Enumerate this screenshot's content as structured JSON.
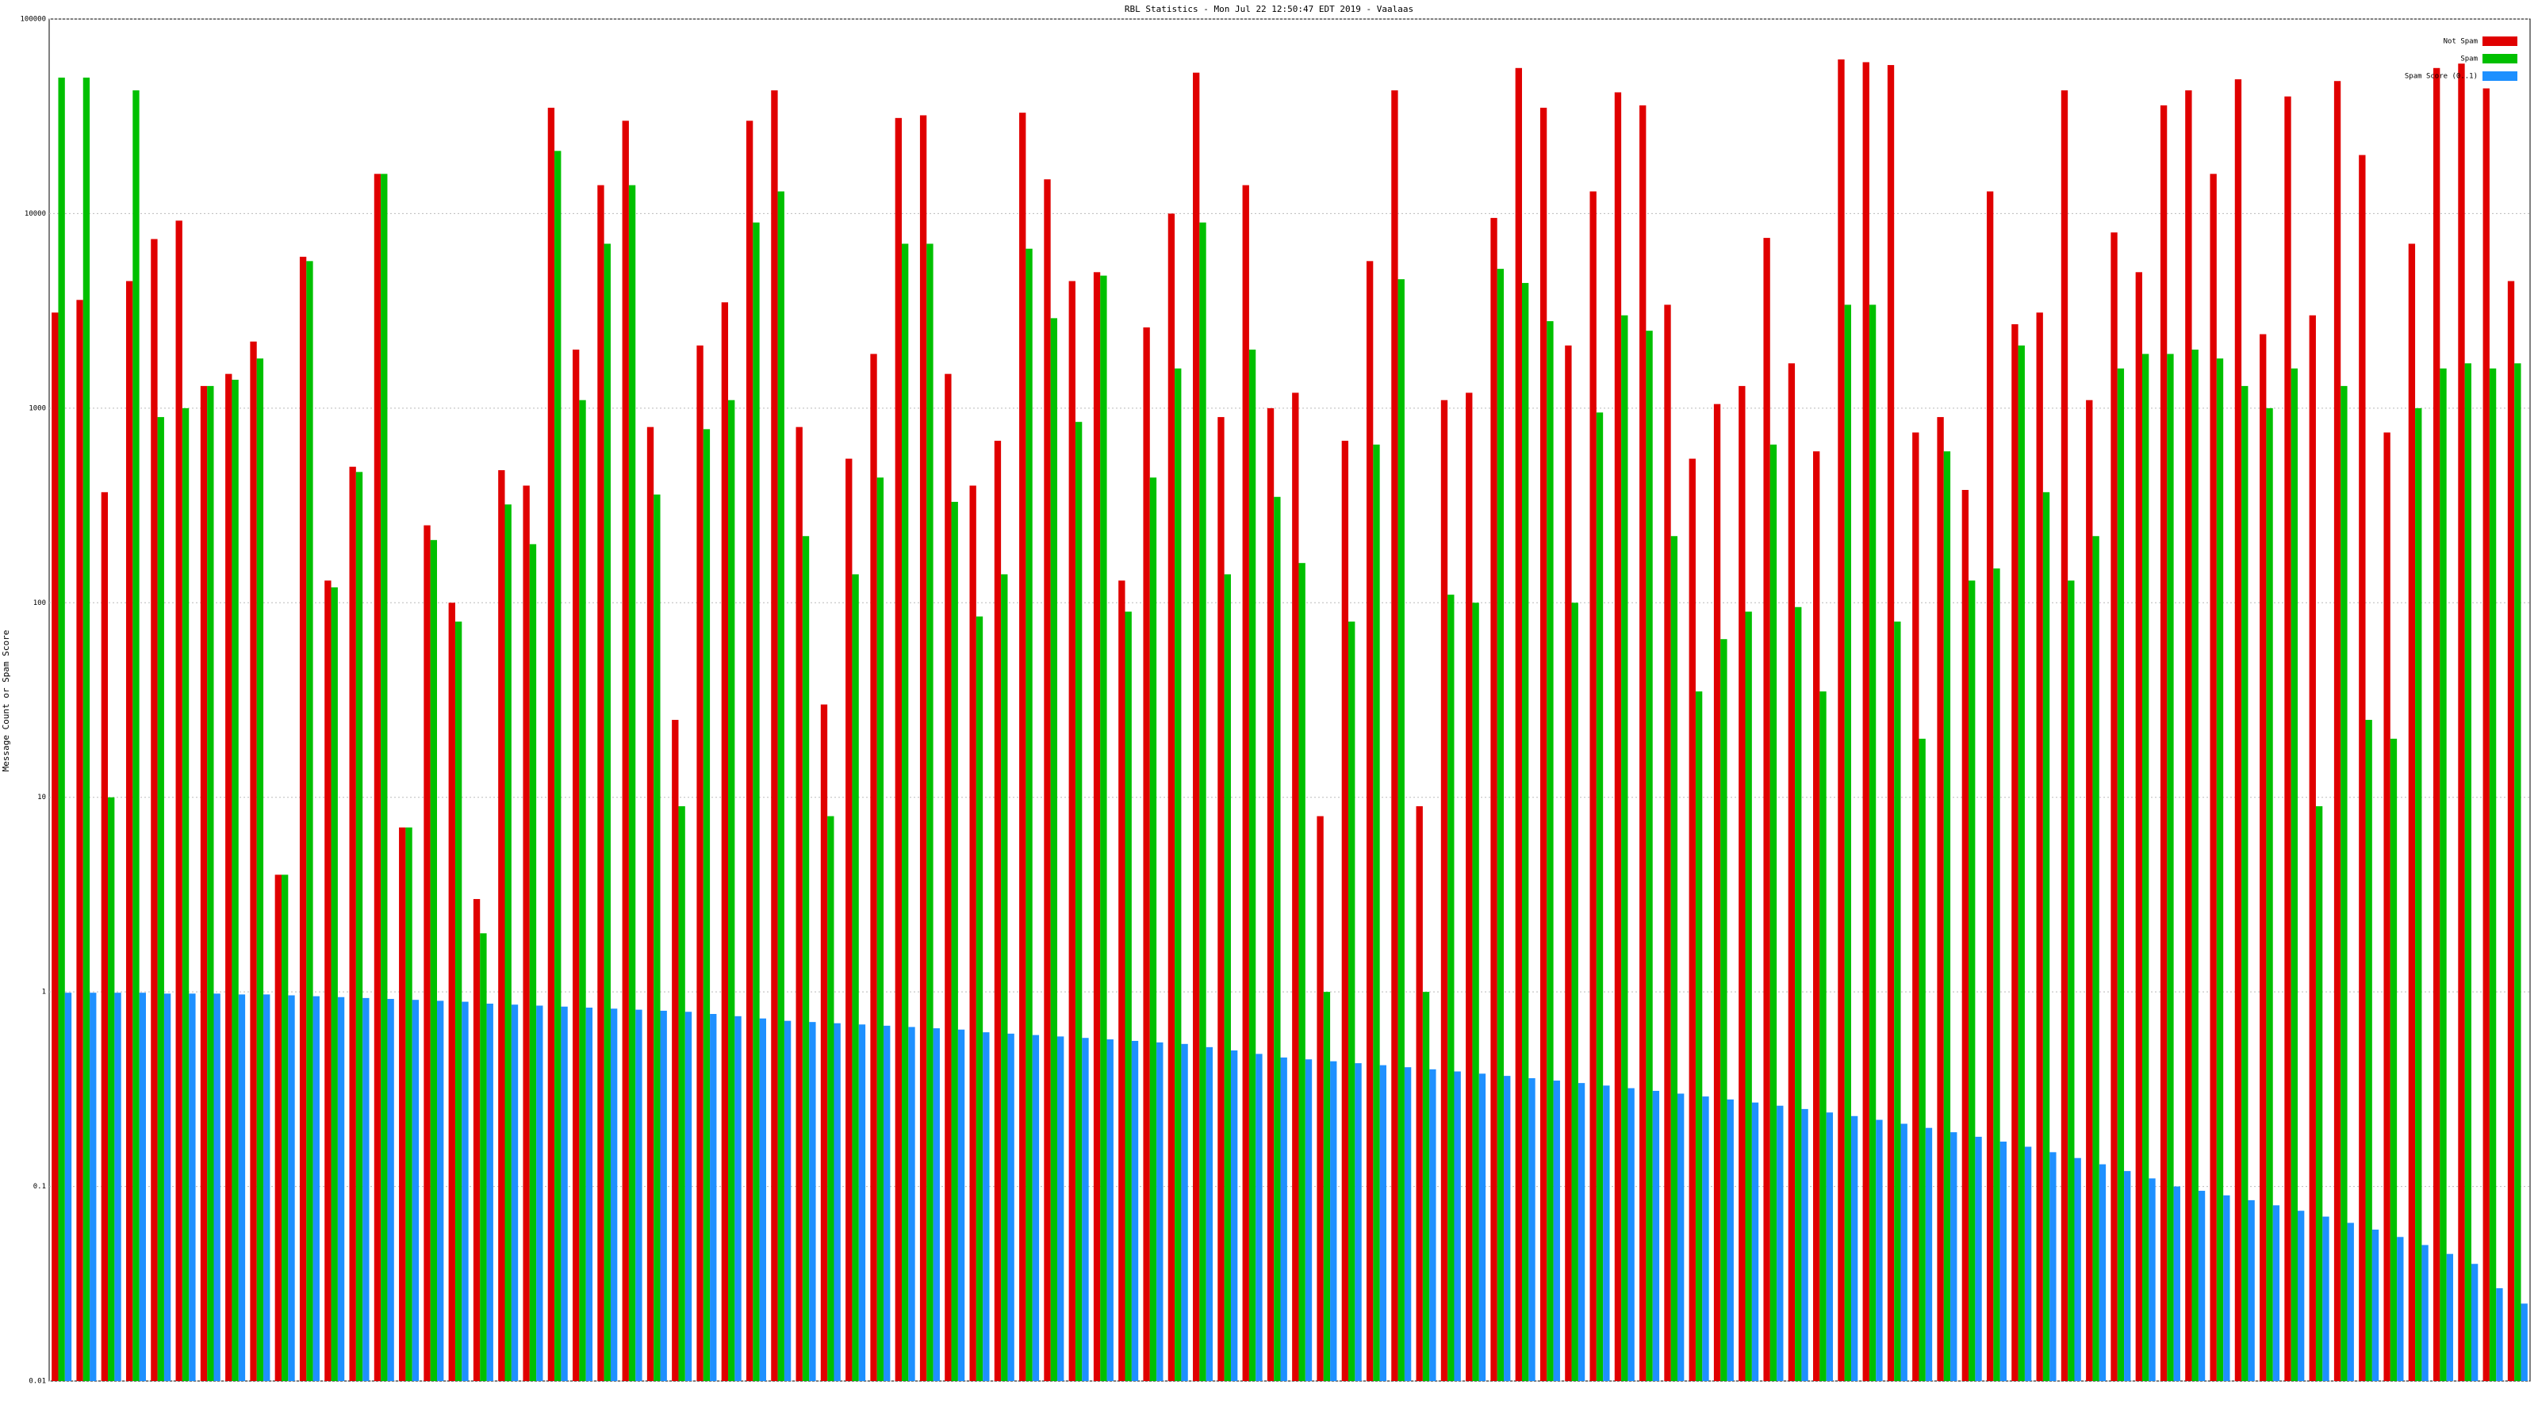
{
  "chart_data": {
    "type": "bar",
    "title": "RBL Statistics - Mon Jul 22 12:50:47 EDT 2019 - Vaalaas",
    "y_label": "Message Count or Spam Score",
    "log_scale": true,
    "grid": true,
    "legend": "top-right",
    "categories": [
      null,
      null,
      null,
      null,
      null,
      null,
      null,
      null,
      null,
      null,
      null,
      null,
      null,
      null,
      null,
      null,
      null,
      null,
      null,
      null,
      null,
      null,
      null,
      null,
      null,
      null,
      null,
      null,
      null,
      null,
      null,
      null,
      null,
      null,
      null,
      null,
      null,
      null,
      null,
      null,
      null,
      null,
      null,
      null,
      null,
      null,
      null,
      null,
      null,
      null,
      null,
      null,
      null,
      null,
      null,
      null,
      null,
      null,
      null,
      null,
      null,
      null,
      null,
      null,
      null,
      null,
      null,
      null,
      null,
      null,
      null,
      null,
      null,
      null,
      null,
      null,
      null,
      null,
      null,
      null,
      null,
      null,
      null,
      null,
      null,
      null,
      null,
      null,
      null,
      null,
      null,
      null,
      null,
      null,
      null,
      null,
      null,
      null,
      null,
      null
    ],
    "series": [
      {
        "name": "Not Spam",
        "color": "#e00000",
        "values": [
          3100,
          3600,
          370,
          4500,
          7400,
          9200,
          1300,
          1500,
          2200,
          4,
          6000,
          130,
          500,
          16000,
          7,
          250,
          100,
          3,
          480,
          400,
          35000,
          2000,
          14000,
          30000,
          800,
          25,
          2100,
          3500,
          30000,
          43000,
          800,
          30,
          550,
          1900,
          31000,
          32000,
          1500,
          400,
          680,
          33000,
          15000,
          4500,
          5000,
          130,
          2600,
          10000,
          53000,
          900,
          14000,
          1000,
          1200,
          8,
          680,
          5700,
          43000,
          9,
          1100,
          1200,
          9500,
          56000,
          35000,
          2100,
          13000,
          42000,
          36000,
          3400,
          550,
          1050,
          1300,
          7500,
          1700,
          600,
          62000,
          60000,
          58000,
          750,
          900,
          380,
          13000,
          2700,
          3100,
          43000,
          1100,
          8000,
          5000,
          36000,
          43000,
          16000,
          49000,
          2400,
          40000,
          3000,
          48000,
          20000,
          750,
          7000,
          56000,
          59000,
          44000,
          4500
        ]
      },
      {
        "name": "Spam",
        "color": "#00c000",
        "values": [
          50000,
          50000,
          10,
          43000,
          900,
          1000,
          1300,
          1400,
          1800,
          4,
          5700,
          120,
          470,
          16000,
          7,
          210,
          80,
          2,
          320,
          200,
          21000,
          1100,
          7000,
          14000,
          360,
          9,
          780,
          1100,
          9000,
          13000,
          220,
          8,
          140,
          440,
          7000,
          7000,
          330,
          85,
          140,
          6600,
          2900,
          850,
          4800,
          90,
          440,
          1600,
          9000,
          140,
          2000,
          350,
          160,
          1,
          80,
          650,
          4600,
          1,
          110,
          100,
          5200,
          4400,
          2800,
          100,
          950,
          3000,
          2500,
          220,
          35,
          65,
          90,
          650,
          95,
          35,
          3400,
          3400,
          80,
          20,
          600,
          130,
          150,
          2100,
          370,
          130,
          220,
          1600,
          1900,
          1900,
          2000,
          1800,
          1300,
          1000,
          1600,
          9,
          1300,
          25,
          20,
          1000,
          1600,
          1700,
          1600,
          1700
        ]
      },
      {
        "name": "Spam Score (0..1)",
        "color": "#1e90ff",
        "values": [
          0.99,
          0.99,
          0.99,
          0.99,
          0.98,
          0.98,
          0.98,
          0.97,
          0.97,
          0.96,
          0.95,
          0.94,
          0.93,
          0.92,
          0.91,
          0.9,
          0.89,
          0.87,
          0.86,
          0.85,
          0.84,
          0.83,
          0.82,
          0.81,
          0.8,
          0.79,
          0.77,
          0.75,
          0.73,
          0.71,
          0.7,
          0.69,
          0.68,
          0.67,
          0.66,
          0.65,
          0.64,
          0.62,
          0.61,
          0.6,
          0.59,
          0.58,
          0.57,
          0.56,
          0.55,
          0.54,
          0.52,
          0.5,
          0.48,
          0.46,
          0.45,
          0.44,
          0.43,
          0.42,
          0.41,
          0.4,
          0.39,
          0.38,
          0.37,
          0.36,
          0.35,
          0.34,
          0.33,
          0.32,
          0.31,
          0.3,
          0.29,
          0.28,
          0.27,
          0.26,
          0.25,
          0.24,
          0.23,
          0.22,
          0.21,
          0.2,
          0.19,
          0.18,
          0.17,
          0.16,
          0.15,
          0.14,
          0.13,
          0.12,
          0.11,
          0.1,
          0.095,
          0.09,
          0.085,
          0.08,
          0.075,
          0.07,
          0.065,
          0.06,
          0.055,
          0.05,
          0.045,
          0.04,
          0.03,
          0.025
        ]
      }
    ],
    "ylim": [
      0.01,
      100000
    ],
    "yticks": [
      0.01,
      0.1,
      1,
      10,
      100,
      1000,
      10000,
      100000
    ]
  }
}
